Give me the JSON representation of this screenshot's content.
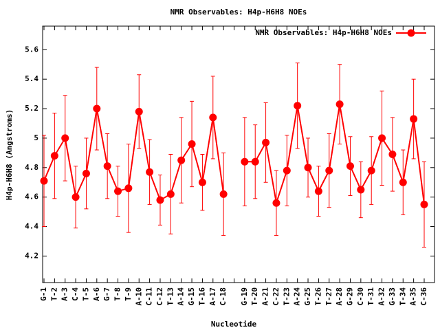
{
  "chart_data": {
    "type": "errorline",
    "title": "NMR Observables: H4p-H6H8 NOEs",
    "xlabel": "Nucleotide",
    "ylabel": "H4p-H6H8 (Angstroms)",
    "categories": [
      "G-1",
      "T-2",
      "A-3",
      "C-4",
      "T-5",
      "A-6",
      "G-7",
      "T-8",
      "T-9",
      "A-10",
      "C-11",
      "C-12",
      "T-13",
      "A-14",
      "G-15",
      "T-16",
      "A-17",
      "C-18",
      null,
      "G-19",
      "T-20",
      "A-21",
      "C-22",
      "T-23",
      "A-24",
      "G-25",
      "T-26",
      "T-27",
      "A-28",
      "G-29",
      "C-30",
      "T-31",
      "A-32",
      "G-33",
      "T-34",
      "A-35",
      "C-36"
    ],
    "series": [
      {
        "name": "NMR Observables: H4p-H6H8 NOEs",
        "color": "#ff0000",
        "values": [
          4.71,
          4.88,
          5.0,
          4.6,
          4.76,
          5.2,
          4.81,
          4.64,
          4.66,
          5.18,
          4.77,
          4.58,
          4.62,
          4.85,
          4.96,
          4.7,
          5.14,
          4.62,
          null,
          4.84,
          4.84,
          4.97,
          4.56,
          4.78,
          5.22,
          4.8,
          4.64,
          4.78,
          5.23,
          4.81,
          4.65,
          4.78,
          5.0,
          4.89,
          4.7,
          5.13,
          4.55
        ],
        "errors": [
          0.31,
          0.29,
          0.29,
          0.21,
          0.24,
          0.28,
          0.22,
          0.17,
          0.3,
          0.25,
          0.22,
          0.17,
          0.27,
          0.29,
          0.29,
          0.19,
          0.28,
          0.28,
          null,
          0.3,
          0.25,
          0.27,
          0.22,
          0.24,
          0.29,
          0.2,
          0.17,
          0.25,
          0.27,
          0.2,
          0.19,
          0.23,
          0.32,
          0.25,
          0.22,
          0.27,
          0.29
        ]
      }
    ],
    "ylim": [
      4.02,
      5.76
    ],
    "yticks": [
      4.2,
      4.4,
      4.6,
      4.8,
      5,
      5.2,
      5.4,
      5.6
    ],
    "legend": "top-right"
  }
}
